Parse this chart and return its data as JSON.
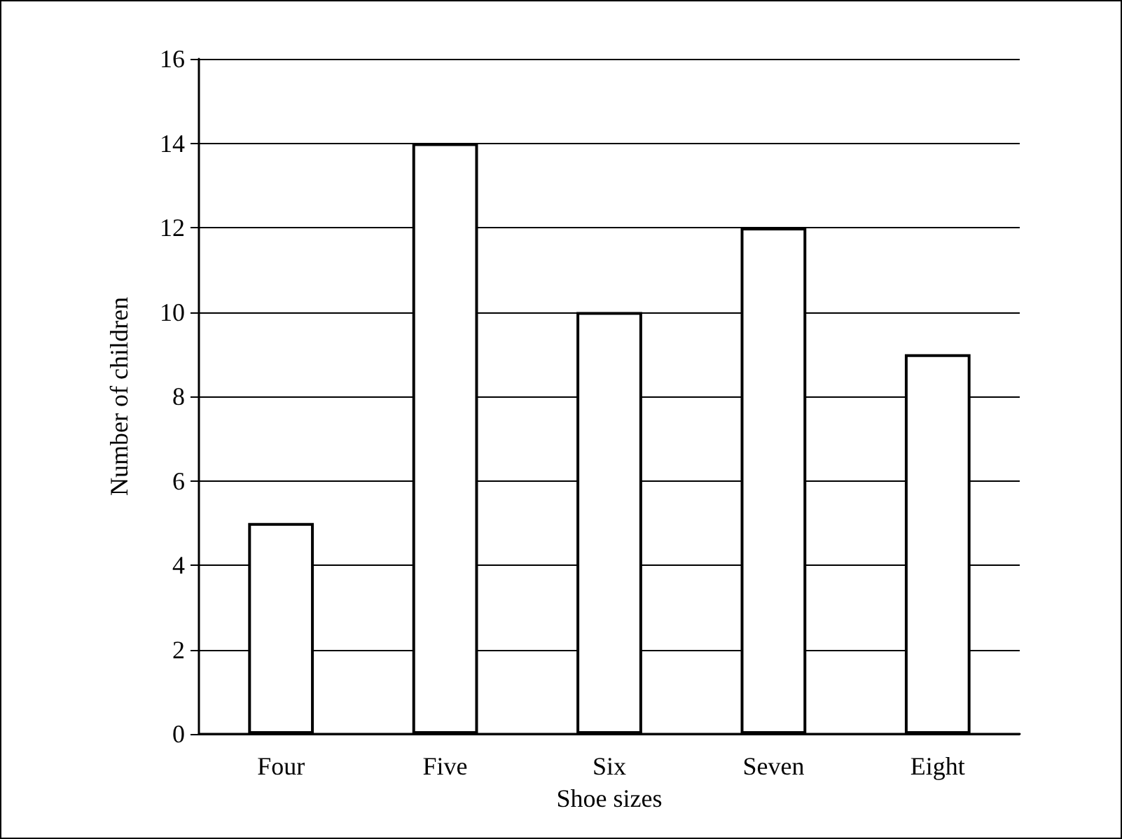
{
  "chart_data": {
    "type": "bar",
    "xlabel": "Shoe sizes",
    "ylabel": "Number of children",
    "categories": [
      "Four",
      "Five",
      "Six",
      "Seven",
      "Eight"
    ],
    "values": [
      5,
      14,
      10,
      12,
      9
    ],
    "color": "#ffffff",
    "ylim": [
      0,
      16
    ],
    "yticks": [
      0,
      2,
      4,
      6,
      8,
      10,
      12,
      14,
      16
    ],
    "grid": "y"
  }
}
